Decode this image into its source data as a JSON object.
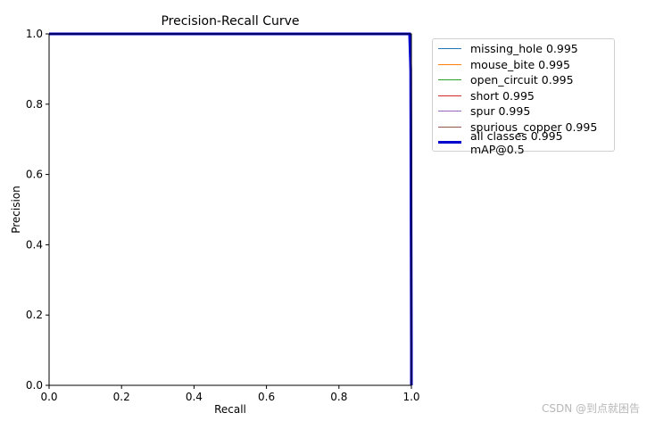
{
  "watermark": "CSDN @到点就困告",
  "chart_data": {
    "type": "line",
    "title": "Precision-Recall Curve",
    "xlabel": "Recall",
    "ylabel": "Precision",
    "xlim": [
      0,
      1
    ],
    "ylim": [
      0,
      1
    ],
    "xticks": [
      "0.0",
      "0.2",
      "0.4",
      "0.6",
      "0.8",
      "1.0"
    ],
    "yticks": [
      "0.0",
      "0.2",
      "0.4",
      "0.6",
      "0.8",
      "1.0"
    ],
    "grid": false,
    "legend_position": "outside-right-top",
    "series": [
      {
        "name": "missing_hole 0.995",
        "color": "#1f77b4",
        "x": [
          0,
          0.995,
          1.0,
          1.0
        ],
        "y": [
          1.0,
          1.0,
          0.6,
          0.0
        ]
      },
      {
        "name": "mouse_bite 0.995",
        "color": "#ff7f0e",
        "x": [
          0,
          0.995,
          1.0,
          1.0
        ],
        "y": [
          1.0,
          1.0,
          0.6,
          0.0
        ]
      },
      {
        "name": "open_circuit 0.995",
        "color": "#2ca02c",
        "x": [
          0,
          0.995,
          1.0,
          1.0
        ],
        "y": [
          1.0,
          1.0,
          0.6,
          0.0
        ]
      },
      {
        "name": "short 0.995",
        "color": "#d62728",
        "x": [
          0,
          0.995,
          1.0,
          1.0
        ],
        "y": [
          1.0,
          1.0,
          0.6,
          0.0
        ]
      },
      {
        "name": "spur 0.995",
        "color": "#9467bd",
        "x": [
          0,
          0.995,
          1.0,
          1.0
        ],
        "y": [
          1.0,
          1.0,
          0.6,
          0.0
        ]
      },
      {
        "name": "spurious_copper 0.995",
        "color": "#8c564b",
        "x": [
          0,
          0.995,
          1.0,
          1.0
        ],
        "y": [
          1.0,
          1.0,
          0.6,
          0.0
        ]
      },
      {
        "name": "all classes 0.995 mAP@0.5",
        "color": "#0000cc",
        "bold": true,
        "x": [
          0,
          0.995,
          0.998,
          1.0,
          1.0
        ],
        "y": [
          1.0,
          1.0,
          0.9,
          0.1,
          0.0
        ]
      }
    ]
  }
}
